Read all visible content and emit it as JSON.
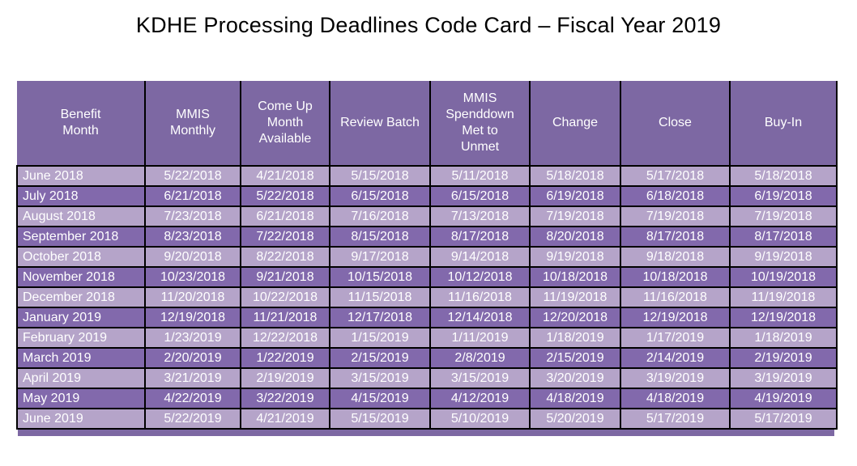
{
  "page": {
    "title": "KDHE Processing Deadlines Code Card – Fiscal Year 2019"
  },
  "colors": {
    "header_bg": "#7D68A3",
    "row_dark": "#8269AC",
    "row_light": "#B5A4C9",
    "grid_border": "#000000",
    "header_text": "#FFFFFF",
    "cell_text": "#FFFFFF",
    "title_text": "#000000",
    "page_bg": "#FFFFFF"
  },
  "table": {
    "headers": [
      "Benefit\nMonth",
      "MMIS\nMonthly",
      "Come Up\nMonth\nAvailable",
      "Review Batch",
      "MMIS\nSpenddown\nMet to\nUnmet",
      "Change",
      "Close",
      "Buy-In"
    ],
    "rows": [
      [
        "June 2018",
        "5/22/2018",
        "4/21/2018",
        "5/15/2018",
        "5/11/2018",
        "5/18/2018",
        "5/17/2018",
        "5/18/2018"
      ],
      [
        "July 2018",
        "6/21/2018",
        "5/22/2018",
        "6/15/2018",
        "6/15/2018",
        "6/19/2018",
        "6/18/2018",
        "6/19/2018"
      ],
      [
        "August 2018",
        "7/23/2018",
        "6/21/2018",
        "7/16/2018",
        "7/13/2018",
        "7/19/2018",
        "7/19/2018",
        "7/19/2018"
      ],
      [
        "September 2018",
        "8/23/2018",
        "7/22/2018",
        "8/15/2018",
        "8/17/2018",
        "8/20/2018",
        "8/17/2018",
        "8/17/2018"
      ],
      [
        "October 2018",
        "9/20/2018",
        "8/22/2018",
        "9/17/2018",
        "9/14/2018",
        "9/19/2018",
        "9/18/2018",
        "9/19/2018"
      ],
      [
        "November 2018",
        "10/23/2018",
        "9/21/2018",
        "10/15/2018",
        "10/12/2018",
        "10/18/2018",
        "10/18/2018",
        "10/19/2018"
      ],
      [
        "December 2018",
        "11/20/2018",
        "10/22/2018",
        "11/15/2018",
        "11/16/2018",
        "11/19/2018",
        "11/16/2018",
        "11/19/2018"
      ],
      [
        "January 2019",
        "12/19/2018",
        "11/21/2018",
        "12/17/2018",
        "12/14/2018",
        "12/20/2018",
        "12/19/2018",
        "12/19/2018"
      ],
      [
        "February 2019",
        "1/23/2019",
        "12/22/2018",
        "1/15/2019",
        "1/11/2019",
        "1/18/2019",
        "1/17/2019",
        "1/18/2019"
      ],
      [
        "March 2019",
        "2/20/2019",
        "1/22/2019",
        "2/15/2019",
        "2/8/2019",
        "2/15/2019",
        "2/14/2019",
        "2/19/2019"
      ],
      [
        "April 2019",
        "3/21/2019",
        "2/19/2019",
        "3/15/2019",
        "3/15/2019",
        "3/20/2019",
        "3/19/2019",
        "3/19/2019"
      ],
      [
        "May 2019",
        "4/22/2019",
        "3/22/2019",
        "4/15/2019",
        "4/12/2019",
        "4/18/2019",
        "4/18/2019",
        "4/19/2019"
      ],
      [
        "June 2019",
        "5/22/2019",
        "4/21/2019",
        "5/15/2019",
        "5/10/2019",
        "5/20/2019",
        "5/17/2019",
        "5/17/2019"
      ]
    ]
  }
}
